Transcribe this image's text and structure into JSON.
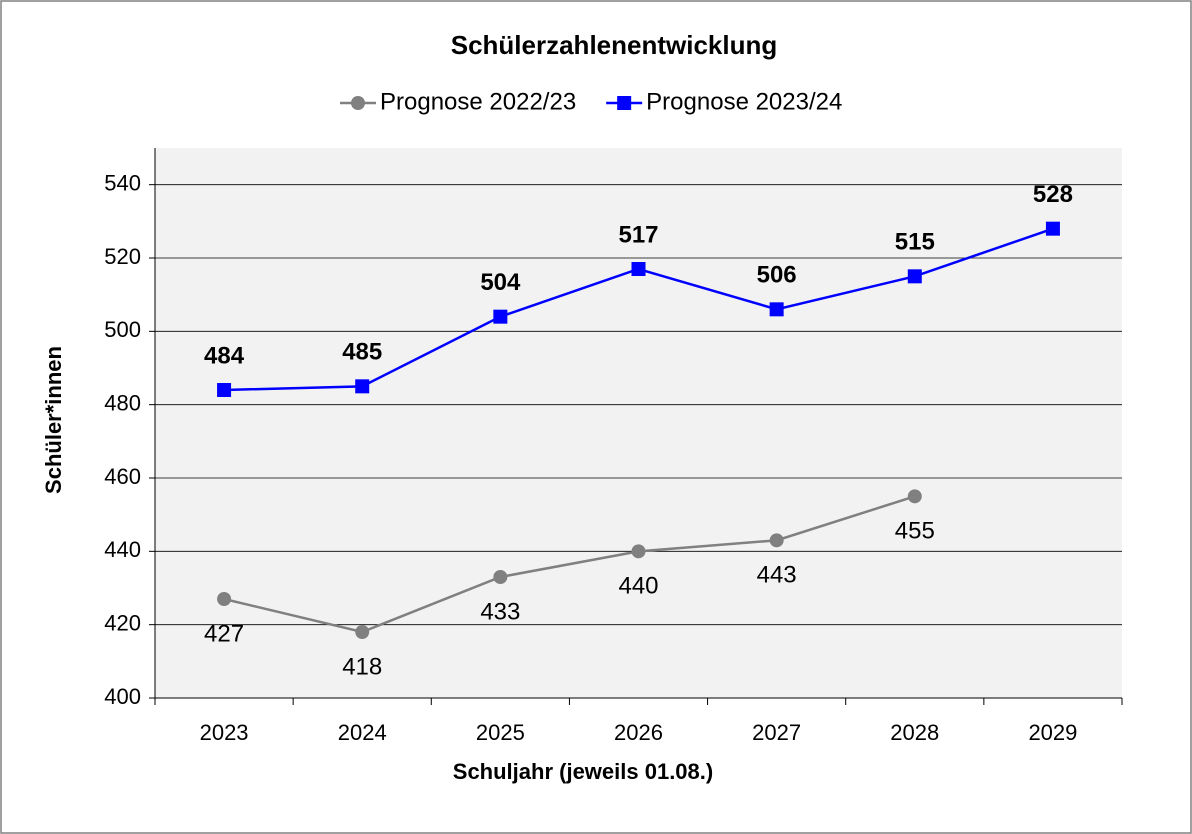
{
  "chart_data": {
    "type": "line",
    "title": "Schülerzahlenentwicklung",
    "x_label": "Schuljahr (jeweils 01.08.)",
    "y_label": "Schüler*innen",
    "categories": [
      "2023",
      "2024",
      "2025",
      "2026",
      "2027",
      "2028",
      "2029"
    ],
    "series": [
      {
        "name": "Prognose 2022/23",
        "color": "#808080",
        "marker": "circle",
        "values": [
          427,
          418,
          433,
          440,
          443,
          455,
          null
        ]
      },
      {
        "name": "Prognose 2023/24",
        "color": "#0000ff",
        "marker": "square",
        "values": [
          484,
          485,
          504,
          517,
          506,
          515,
          528
        ]
      }
    ],
    "ylim": [
      400,
      550
    ],
    "yticks": [
      400,
      420,
      440,
      460,
      480,
      500,
      520,
      540
    ],
    "grid": true,
    "legend": "top"
  }
}
